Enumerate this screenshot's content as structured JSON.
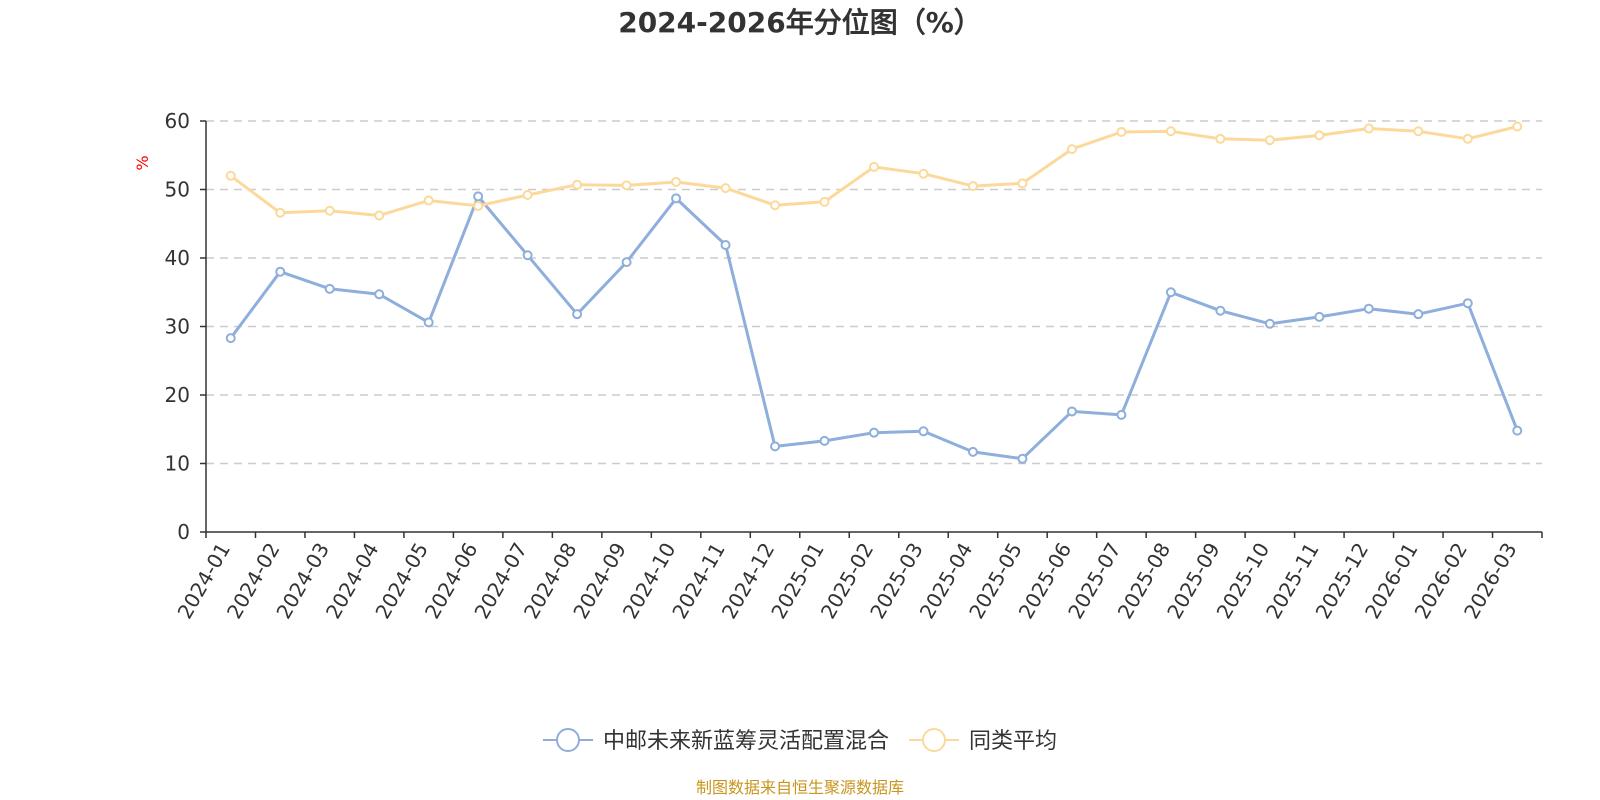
{
  "colors": {
    "fund": "#8eaedb",
    "average": "#fcd99a",
    "ylabel": "#ff0000",
    "source": "#c8951e"
  },
  "chart_data": {
    "type": "line",
    "title": "2024-2026年分位图（%）",
    "xlabel": "",
    "ylabel": "%",
    "ylim": [
      0,
      60
    ],
    "yticks": [
      "0",
      "10",
      "20",
      "30",
      "40",
      "50",
      "60"
    ],
    "grid": true,
    "legend_position": "bottom",
    "categories": [
      "2024-01",
      "2024-02",
      "2024-03",
      "2024-04",
      "2024-05",
      "2024-06",
      "2024-07",
      "2024-08",
      "2024-09",
      "2024-10",
      "2024-11",
      "2024-12",
      "2025-01",
      "2025-02",
      "2025-03",
      "2025-04",
      "2025-05",
      "2025-06",
      "2025-07",
      "2025-08",
      "2025-09",
      "2025-10",
      "2025-11",
      "2025-12",
      "2026-01",
      "2026-02",
      "2026-03"
    ],
    "series": [
      {
        "name": "中邮未来新蓝筹灵活配置混合",
        "color": "#8eaedb",
        "values": [
          28.3,
          38.0,
          35.5,
          34.7,
          30.6,
          49.0,
          40.4,
          31.8,
          39.4,
          48.7,
          41.9,
          12.5,
          13.3,
          14.5,
          14.7,
          11.7,
          10.7,
          17.6,
          17.1,
          35.0,
          32.3,
          30.4,
          31.4,
          32.6,
          31.8,
          33.4,
          14.8
        ]
      },
      {
        "name": "同类平均",
        "color": "#fcd99a",
        "values": [
          52.0,
          46.6,
          46.9,
          46.2,
          48.4,
          47.6,
          49.2,
          50.7,
          50.6,
          51.1,
          50.2,
          47.7,
          48.2,
          53.3,
          52.3,
          50.5,
          50.9,
          55.9,
          58.4,
          58.5,
          57.4,
          57.2,
          57.9,
          58.9,
          58.5,
          57.4,
          59.2
        ]
      }
    ]
  },
  "footer": {
    "source": "制图数据来自恒生聚源数据库"
  }
}
